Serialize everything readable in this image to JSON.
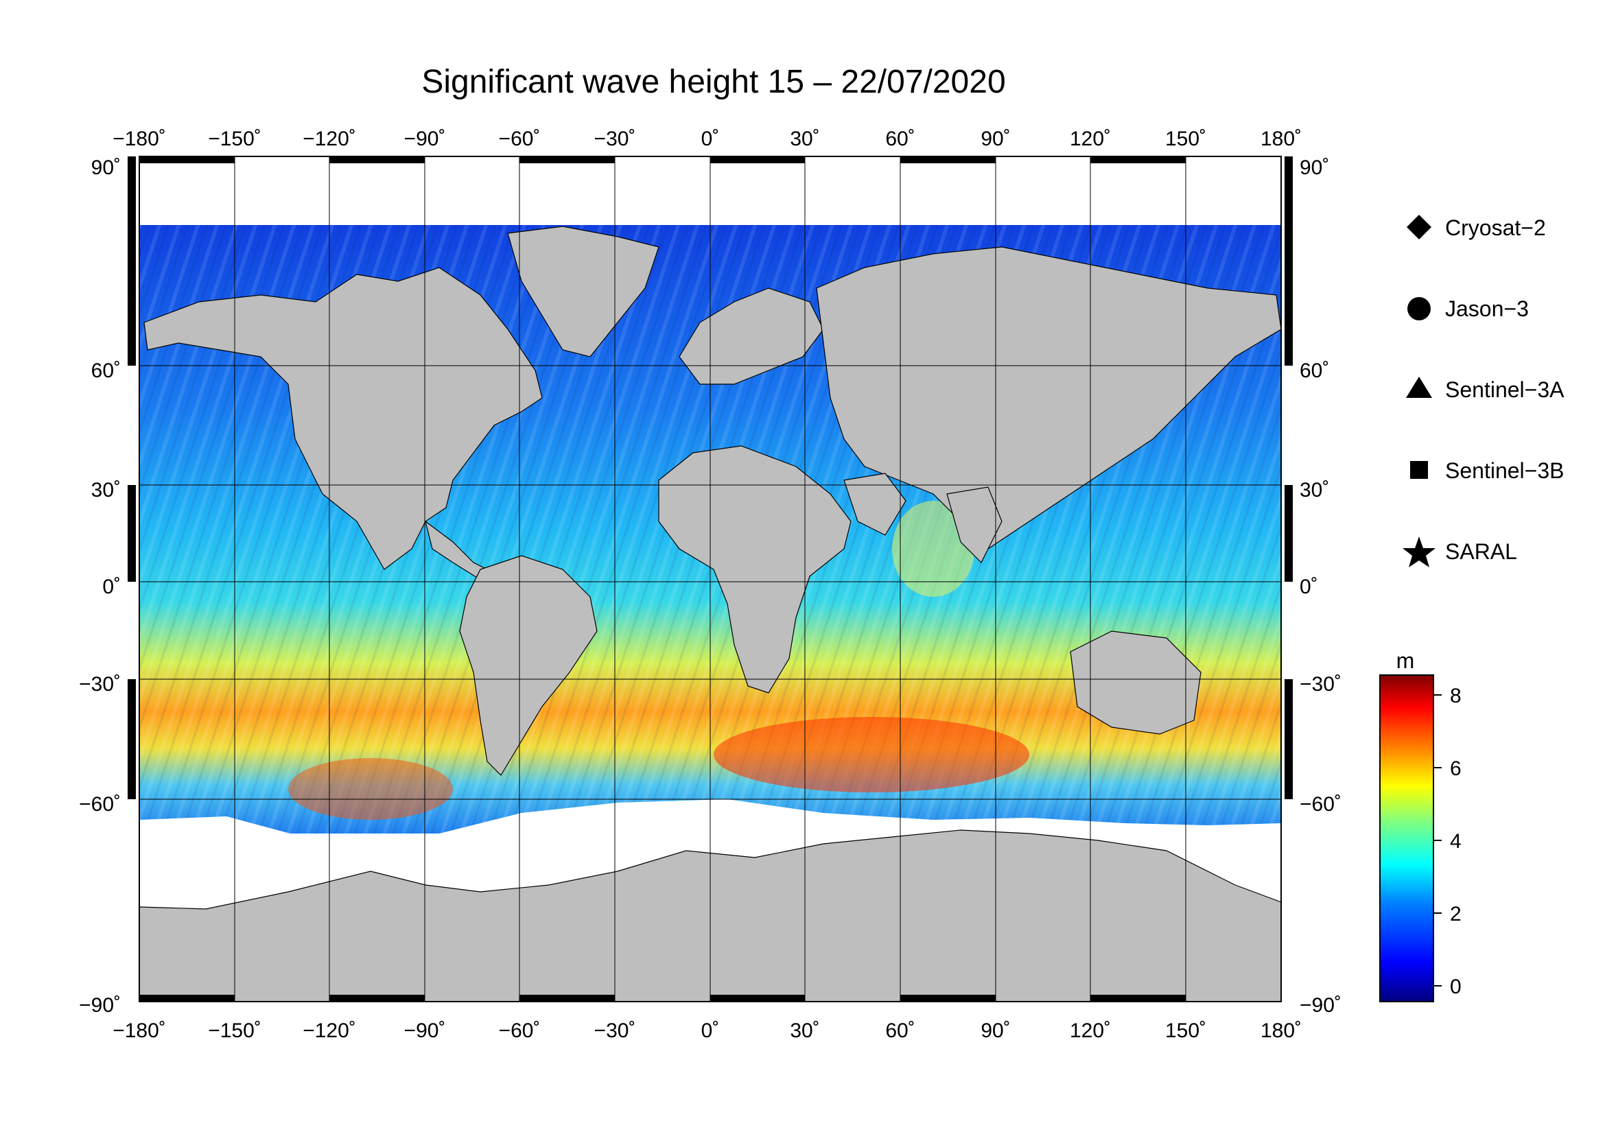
{
  "title": "Significant wave height 15 – 22/07/2020",
  "map": {
    "projection": "equirectangular",
    "lon_range": [
      -180,
      180
    ],
    "lat_range": [
      -90,
      90
    ],
    "lon_ticks": [
      "−180˚",
      "−150˚",
      "−120˚",
      "−90˚",
      "−60˚",
      "−30˚",
      "0˚",
      "30˚",
      "60˚",
      "90˚",
      "120˚",
      "150˚",
      "180˚"
    ],
    "lat_ticks": [
      "90˚",
      "60˚",
      "30˚",
      "0˚",
      "−30˚",
      "−60˚",
      "−90˚"
    ],
    "grid": true,
    "land_color": "#bebebe",
    "ice_color": "#ffffff"
  },
  "legend": {
    "satellites": [
      {
        "name": "Cryosat−2",
        "symbol": "diamond"
      },
      {
        "name": "Jason−3",
        "symbol": "circle"
      },
      {
        "name": "Sentinel−3A",
        "symbol": "triangle"
      },
      {
        "name": "Sentinel−3B",
        "symbol": "square"
      },
      {
        "name": "SARAL",
        "symbol": "star"
      }
    ]
  },
  "colorbar": {
    "unit": "m",
    "ticks": [
      "8",
      "6",
      "4",
      "2",
      "0"
    ],
    "range": [
      -0.3,
      8.6
    ],
    "colors": [
      "#00007f",
      "#0000ff",
      "#007fff",
      "#00ffff",
      "#7fff7f",
      "#ffff00",
      "#ff7f00",
      "#ff0000",
      "#7f0000"
    ]
  },
  "chart_data": {
    "type": "heatmap",
    "title": "Significant wave height 15 – 22/07/2020",
    "unit": "m",
    "x_range": [
      -180,
      180
    ],
    "y_range": [
      -90,
      90
    ],
    "value_range": [
      0,
      8
    ],
    "grid": true,
    "legend_position": "right"
  }
}
